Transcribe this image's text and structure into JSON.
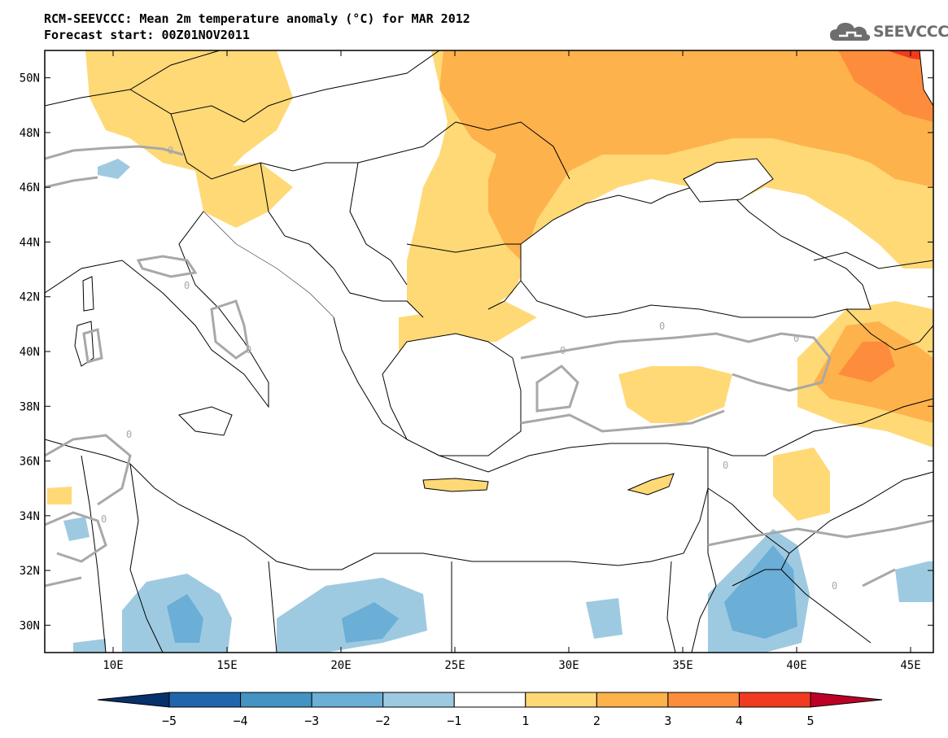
{
  "header": {
    "title_line1": "RCM-SEEVCCC: Mean 2m temperature anomaly (°C) for MAR 2012",
    "title_line2": "Forecast start: 00Z01NOV2011"
  },
  "logo": {
    "text": "SEEVCCC",
    "icon": "cloud-icon",
    "color": "#6e6e6e"
  },
  "map": {
    "lon_range": [
      7,
      46
    ],
    "lat_range": [
      29,
      51
    ],
    "lat_ticks": [
      {
        "value": 50,
        "label": "50N"
      },
      {
        "value": 48,
        "label": "48N"
      },
      {
        "value": 46,
        "label": "46N"
      },
      {
        "value": 44,
        "label": "44N"
      },
      {
        "value": 42,
        "label": "42N"
      },
      {
        "value": 40,
        "label": "40N"
      },
      {
        "value": 38,
        "label": "38N"
      },
      {
        "value": 36,
        "label": "36N"
      },
      {
        "value": 34,
        "label": "34N"
      },
      {
        "value": 32,
        "label": "32N"
      },
      {
        "value": 30,
        "label": "30N"
      }
    ],
    "lon_ticks": [
      {
        "value": 10,
        "label": "10E"
      },
      {
        "value": 15,
        "label": "15E"
      },
      {
        "value": 20,
        "label": "20E"
      },
      {
        "value": 25,
        "label": "25E"
      },
      {
        "value": 30,
        "label": "30E"
      },
      {
        "value": 35,
        "label": "35E"
      },
      {
        "value": 40,
        "label": "40E"
      },
      {
        "value": 45,
        "label": "45E"
      }
    ],
    "contour_label": "0"
  },
  "colorbar": {
    "boundaries": [
      "−5",
      "−4",
      "−3",
      "−2",
      "−1",
      "1",
      "2",
      "3",
      "4",
      "5"
    ],
    "colors": [
      "#08306b",
      "#2166ac",
      "#4393c3",
      "#6baed6",
      "#9ecae1",
      "#ffffff",
      "#fed976",
      "#feb24c",
      "#fd8d3c",
      "#f03b20",
      "#bd0026"
    ]
  },
  "palette": {
    "anom_1_2": "#fed976",
    "anom_2_3": "#feb24c",
    "anom_3_4": "#fd8d3c",
    "anom_4_5": "#f03b20",
    "anom_m1_m2": "#9ecae1",
    "anom_m2_m3": "#6baed6",
    "anom_m3_m4": "#4393c3",
    "zero_contour": "#a8a8a8",
    "coastline": "#000000"
  }
}
